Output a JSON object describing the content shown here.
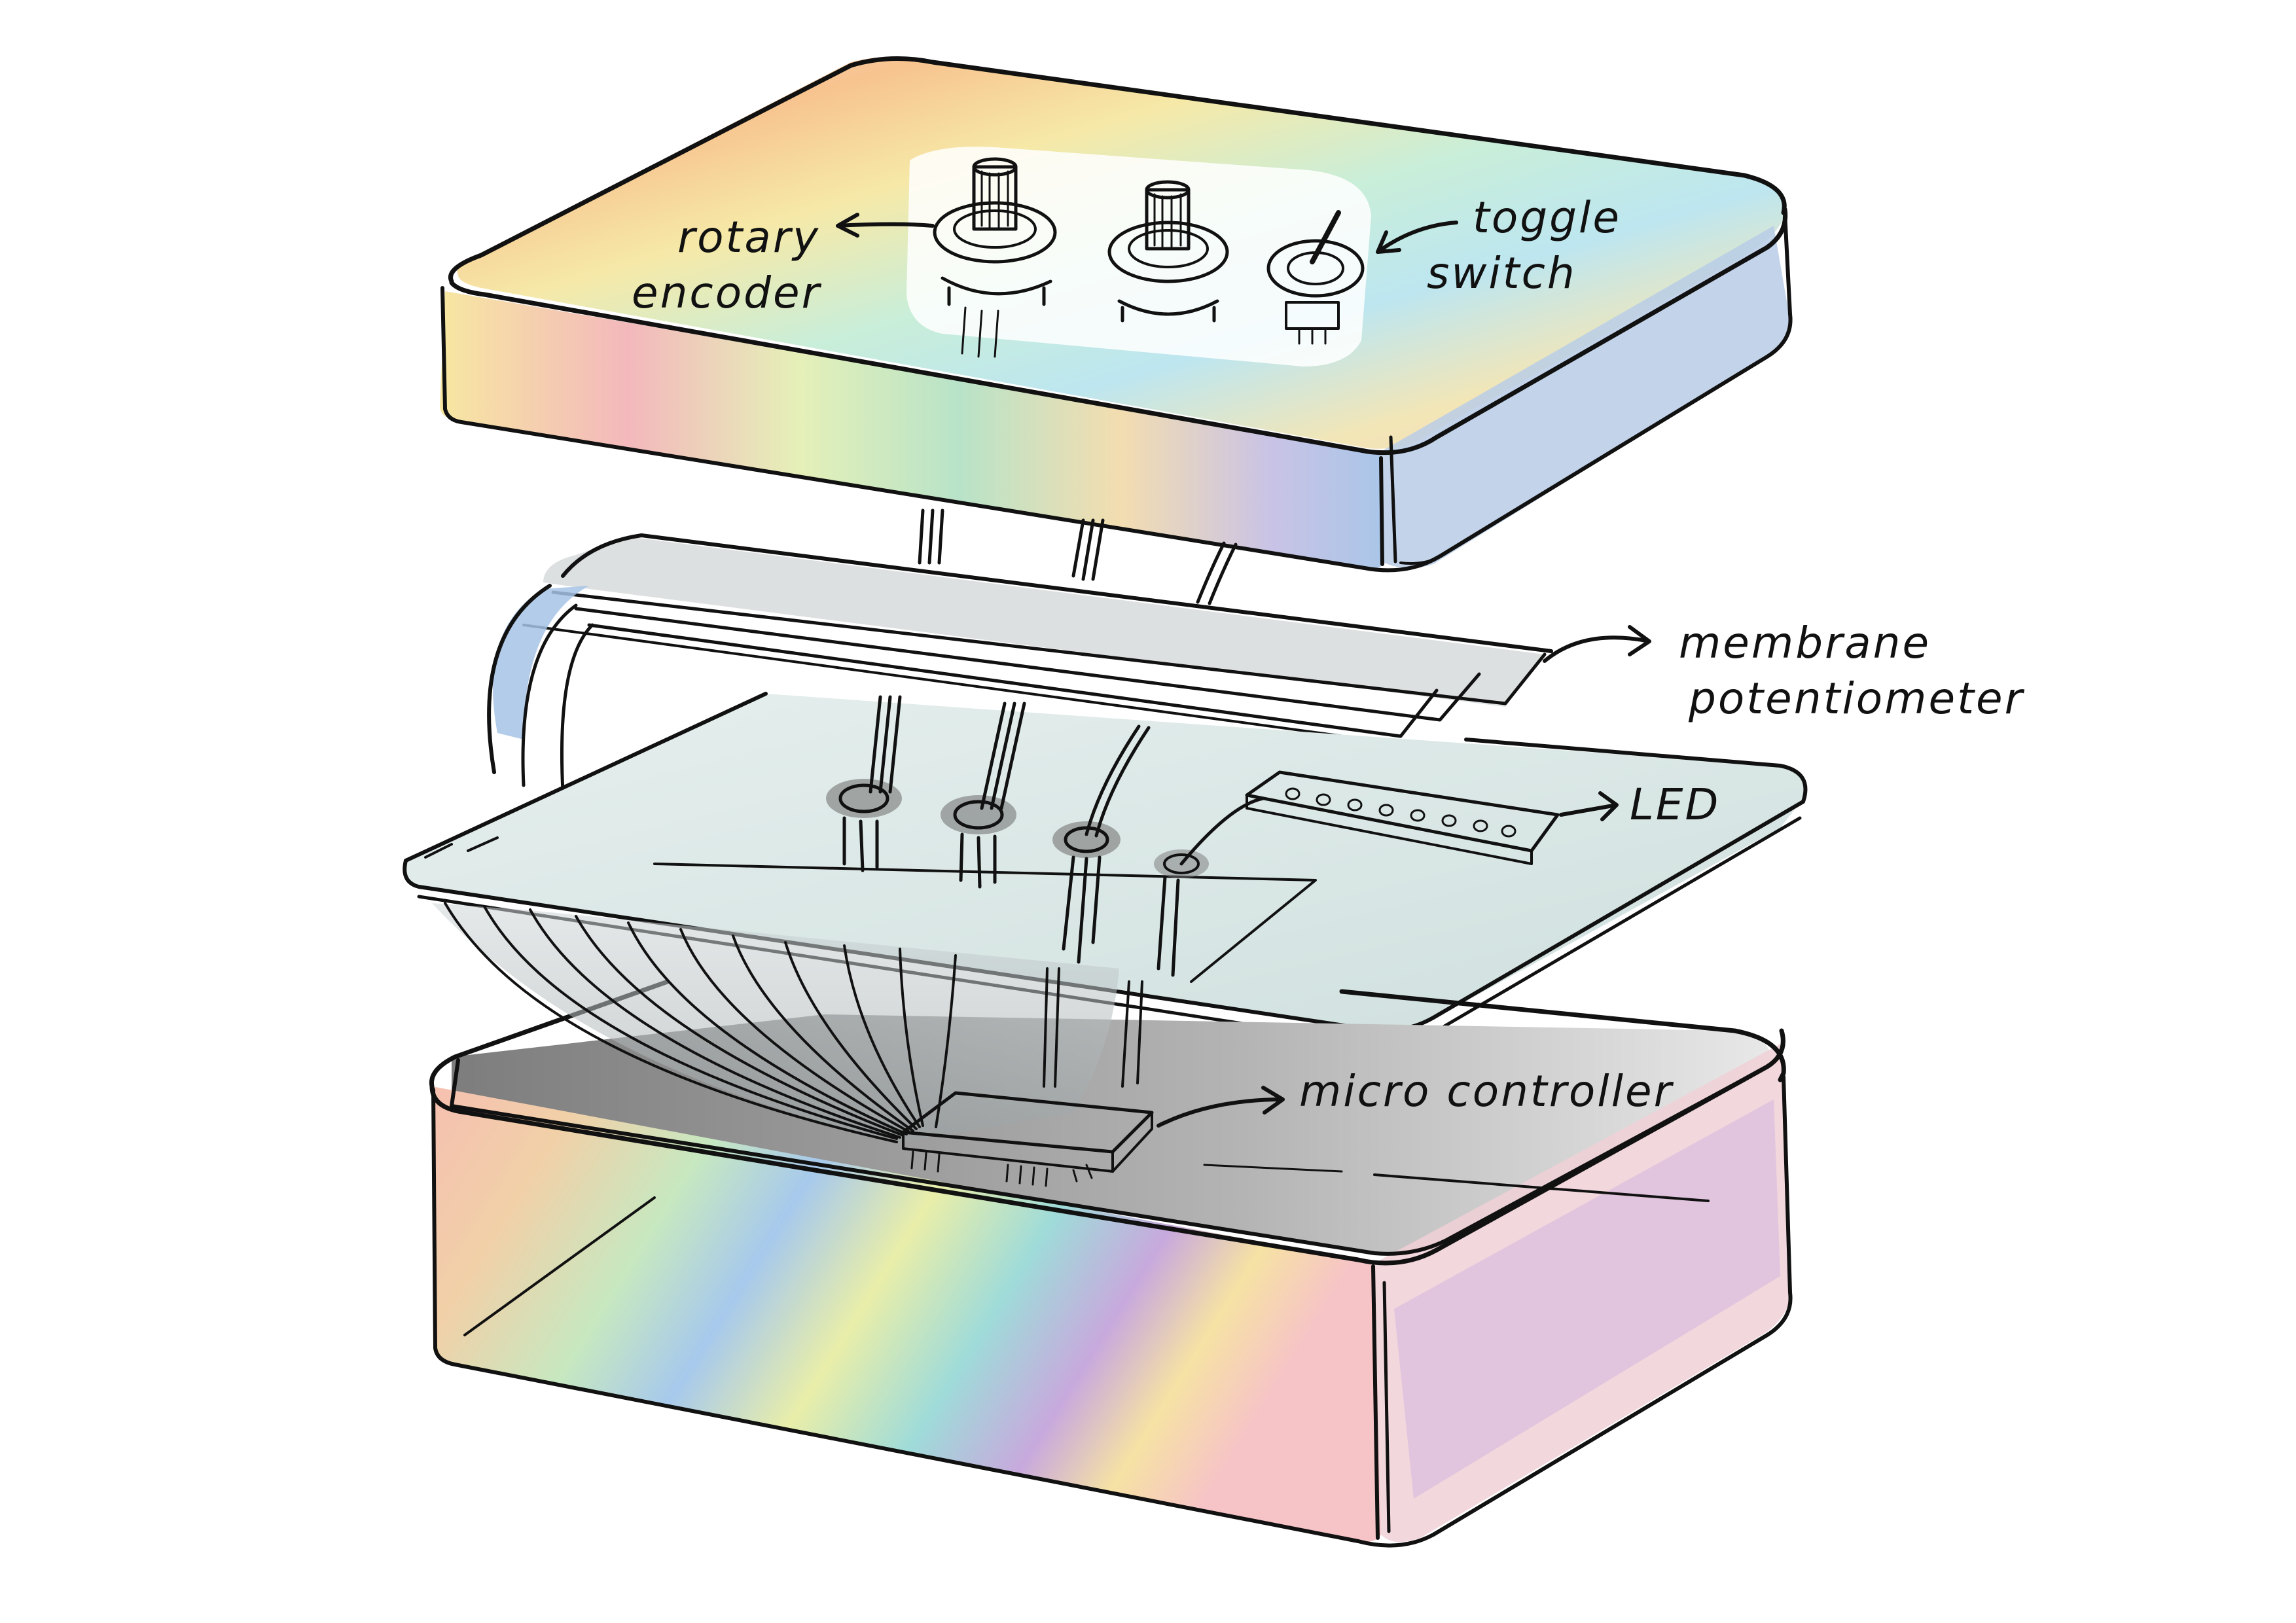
{
  "labels": {
    "rotary_encoder_line1": "rotary",
    "rotary_encoder_line2": "encoder",
    "toggle_switch_line1": "toggle",
    "toggle_switch_line2": "switch",
    "membrane_line1": "membrane",
    "membrane_line2": "potentiometer",
    "led": "LED",
    "micro_controller": "micro controller"
  },
  "colors": {
    "ink": "#111111",
    "board": "#dfe9e8",
    "tray_floor": "#8c8c8c",
    "chip": "#7ea6cf",
    "led_strip": "#e9d6a8",
    "membrane": "#d8dcdd"
  },
  "components": {
    "rotary_encoders": 2,
    "toggle_switches": 1,
    "led_dots": 8
  }
}
